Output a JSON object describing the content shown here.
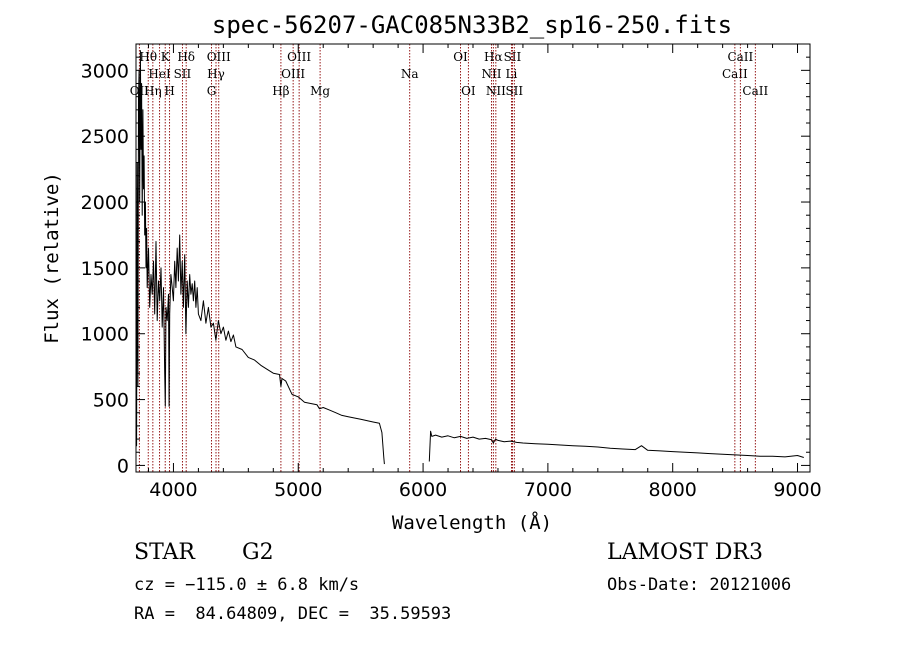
{
  "chart_data": {
    "type": "line",
    "title": "spec-56207-GAC085N33B2_sp16-250.fits",
    "xlabel": "Wavelength (Å)",
    "ylabel": "Flux (relative)",
    "xlim": [
      3700,
      9100
    ],
    "ylim": [
      -50,
      3200
    ],
    "xticks": [
      4000,
      5000,
      6000,
      7000,
      8000,
      9000
    ],
    "xtick_labels": [
      "4000",
      "5000",
      "6000",
      "7000",
      "8000",
      "9000"
    ],
    "yticks": [
      0,
      500,
      1000,
      1500,
      2000,
      2500,
      3000
    ],
    "ytick_labels": [
      "0",
      "500",
      "1000",
      "1500",
      "2000",
      "2500",
      "3000"
    ],
    "series": [
      {
        "name": "flux",
        "segments": [
          {
            "x": [
              3700,
              3705,
              3710,
              3715,
              3720,
              3725,
              3730,
              3735,
              3740,
              3745,
              3750,
              3755,
              3760,
              3765,
              3770,
              3775,
              3780,
              3785,
              3790,
              3800,
              3810,
              3820,
              3830,
              3840,
              3850,
              3860,
              3870,
              3880,
              3890,
              3900,
              3910,
              3920,
              3930,
              3935,
              3940,
              3950,
              3960,
              3965,
              3970,
              3980,
              3990,
              4000,
              4010,
              4020,
              4030,
              4040,
              4050,
              4060,
              4070,
              4080,
              4090,
              4100,
              4110,
              4120,
              4130,
              4140,
              4150,
              4160,
              4170,
              4180,
              4190,
              4200,
              4220,
              4240,
              4260,
              4280,
              4300,
              4320,
              4340,
              4360,
              4380,
              4400,
              4420,
              4440,
              4460,
              4480,
              4500,
              4550,
              4600,
              4650,
              4700,
              4750,
              4800,
              4850,
              4861,
              4870,
              4900,
              4950,
              5000,
              5050,
              5100,
              5150,
              5170,
              5200,
              5250,
              5300,
              5350,
              5400,
              5450,
              5500,
              5550,
              5600,
              5650,
              5670,
              5685,
              5690
            ],
            "y": [
              300,
              150,
              2300,
              600,
              2800,
              3000,
              2000,
              3150,
              2400,
              2900,
              1900,
              2700,
              2100,
              2350,
              1750,
              2000,
              1500,
              1800,
              1350,
              1650,
              1200,
              1450,
              1300,
              1550,
              1150,
              1700,
              1100,
              1400,
              1250,
              1500,
              1050,
              1350,
              700,
              450,
              1200,
              1100,
              1300,
              450,
              1150,
              1450,
              1350,
              1250,
              1550,
              1350,
              1650,
              1400,
              1750,
              1300,
              1550,
              1200,
              1600,
              1000,
              1400,
              1200,
              1450,
              1300,
              1380,
              1250,
              1400,
              1200,
              1350,
              1150,
              1100,
              1250,
              1080,
              1200,
              1050,
              1080,
              950,
              1100,
              1000,
              1050,
              950,
              1020,
              940,
              990,
              900,
              880,
              820,
              800,
              760,
              730,
              700,
              690,
              600,
              660,
              640,
              540,
              520,
              480,
              470,
              460,
              430,
              440,
              420,
              400,
              380,
              370,
              360,
              350,
              340,
              330,
              320,
              250,
              60,
              10
            ]
          },
          {
            "x": [
              6050,
              6060,
              6070,
              6100,
              6150,
              6200,
              6250,
              6300,
              6350,
              6400,
              6450,
              6500,
              6550,
              6563,
              6580,
              6600,
              6650,
              6700,
              6750,
              6800,
              6900,
              7000,
              7100,
              7200,
              7300,
              7400,
              7500,
              7600,
              7700,
              7750,
              7800,
              7900,
              8000,
              8100,
              8200,
              8300,
              8400,
              8500,
              8600,
              8700,
              8800,
              8900,
              9000,
              9050
            ],
            "y": [
              30,
              260,
              220,
              230,
              215,
              225,
              210,
              220,
              205,
              215,
              200,
              205,
              195,
              170,
              200,
              190,
              180,
              185,
              175,
              170,
              165,
              160,
              155,
              150,
              145,
              140,
              130,
              125,
              120,
              150,
              115,
              110,
              105,
              100,
              95,
              90,
              85,
              80,
              75,
              70,
              70,
              65,
              75,
              60
            ]
          }
        ]
      }
    ],
    "spectral_lines": [
      {
        "label": "OII",
        "wave": 3727,
        "row": 2
      },
      {
        "label": "Hθ",
        "wave": 3798,
        "row": 0
      },
      {
        "label": "Hη",
        "wave": 3835,
        "row": 2
      },
      {
        "label": "HeI",
        "wave": 3889,
        "row": 1
      },
      {
        "label": "K",
        "wave": 3934,
        "row": 0
      },
      {
        "label": "H",
        "wave": 3969,
        "row": 2
      },
      {
        "label": "SII",
        "wave": 4072,
        "row": 1
      },
      {
        "label": "Hδ",
        "wave": 4102,
        "row": 0
      },
      {
        "label": "G",
        "wave": 4305,
        "row": 2
      },
      {
        "label": "Hγ",
        "wave": 4341,
        "row": 1
      },
      {
        "label": "OIII",
        "wave": 4363,
        "row": 0
      },
      {
        "label": "Hβ",
        "wave": 4861,
        "row": 2
      },
      {
        "label": "OIII",
        "wave": 4959,
        "row": 1
      },
      {
        "label": "OIII",
        "wave": 5007,
        "row": 0
      },
      {
        "label": "Mg",
        "wave": 5175,
        "row": 2
      },
      {
        "label": "Na",
        "wave": 5893,
        "row": 1
      },
      {
        "label": "OI",
        "wave": 6300,
        "row": 0
      },
      {
        "label": "OI",
        "wave": 6363,
        "row": 2
      },
      {
        "label": "NII",
        "wave": 6548,
        "row": 1
      },
      {
        "label": "Hα",
        "wave": 6563,
        "row": 0
      },
      {
        "label": "NII",
        "wave": 6583,
        "row": 2
      },
      {
        "label": "SII",
        "wave": 6716,
        "row": 0
      },
      {
        "label": "Li",
        "wave": 6708,
        "row": 1
      },
      {
        "label": "SII",
        "wave": 6731,
        "row": 2
      },
      {
        "label": "CaII",
        "wave": 8498,
        "row": 1
      },
      {
        "label": "CaII",
        "wave": 8542,
        "row": 0
      },
      {
        "label": "CaII",
        "wave": 8662,
        "row": 2
      }
    ]
  },
  "info": {
    "class": "STAR",
    "subclass": "G2",
    "survey": "LAMOST DR3",
    "cz": "cz = −115.0 ± 6.8 km/s",
    "obs_date": "Obs-Date: 20121006",
    "coords": "RA =  84.64809, DEC =  35.59593"
  },
  "colors": {
    "line_marker": "#8b0000",
    "spectrum": "#000000"
  }
}
